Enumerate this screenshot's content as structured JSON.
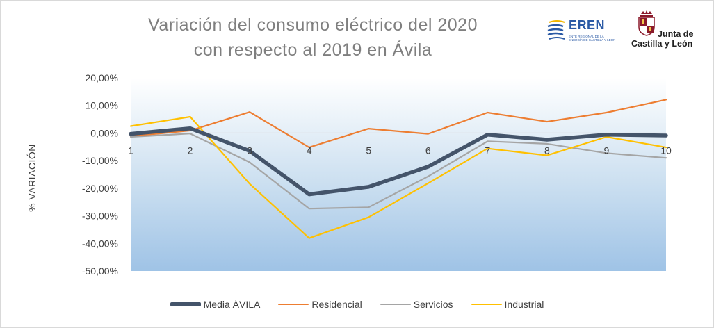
{
  "chart_data": {
    "type": "line",
    "title_lines": [
      "Variación del consumo eléctrico del 2020",
      "con respecto al 2019 en Ávila"
    ],
    "xlabel": "",
    "ylabel": "% VARIACIÓN",
    "categories": [
      "1",
      "2",
      "3",
      "4",
      "5",
      "6",
      "7",
      "8",
      "9",
      "10"
    ],
    "yticks": [
      20,
      10,
      0,
      -10,
      -20,
      -30,
      -40,
      -50
    ],
    "ytick_labels": [
      "20,00%",
      "10,00%",
      "0,00%",
      "-10,00%",
      "-20,00%",
      "-30,00%",
      "-40,00%",
      "-50,00%"
    ],
    "ylim": [
      -50,
      20
    ],
    "grid": false,
    "legend_position": "bottom",
    "series": [
      {
        "name": "Media ÁVILA",
        "color": "#44546a",
        "weight": 5.5,
        "values": [
          -0.3,
          1.7,
          -6.5,
          -22.2,
          -19.5,
          -12.2,
          -0.6,
          -2.4,
          -0.6,
          -0.9
        ]
      },
      {
        "name": "Residencial",
        "color": "#ed7d31",
        "weight": 2.2,
        "values": [
          -1.2,
          0.9,
          7.6,
          -5.2,
          1.6,
          -0.3,
          7.4,
          4.1,
          7.4,
          12.1
        ]
      },
      {
        "name": "Servicios",
        "color": "#a5a5a5",
        "weight": 2.2,
        "values": [
          -1.4,
          -0.2,
          -10.6,
          -27.4,
          -26.9,
          -15.7,
          -3.0,
          -3.9,
          -7.3,
          -9.0
        ]
      },
      {
        "name": "Industrial",
        "color": "#ffc000",
        "weight": 2.2,
        "values": [
          2.5,
          5.9,
          -18.4,
          -38.1,
          -30.5,
          -18.2,
          -5.6,
          -8.1,
          -1.4,
          -5.2
        ]
      }
    ]
  },
  "logos": {
    "eren": {
      "name": "EREN",
      "tagline": "ENTE REGIONAL DE LA ENERGÍA DE CASTILLA Y LEÓN"
    },
    "jcyl": {
      "line1": "Junta de",
      "line2": "Castilla y León"
    }
  }
}
